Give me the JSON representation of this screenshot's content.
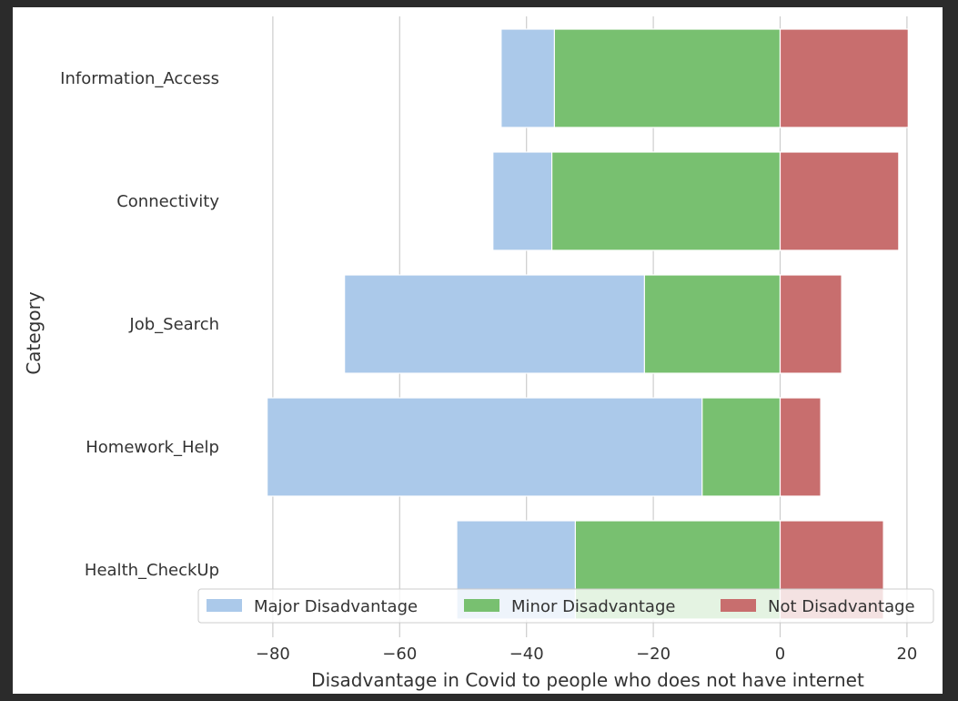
{
  "chart_data": {
    "type": "bar",
    "orientation": "horizontal",
    "stacked": true,
    "categories": [
      "Information_Access",
      "Connectivity",
      "Job_Search",
      "Homework_Help",
      "Health_CheckUp"
    ],
    "series": [
      {
        "name": "Major Disadvantage",
        "color": "#abc9ea",
        "values": [
          -44,
          -45.3,
          -68.7,
          -80.9,
          -51
        ]
      },
      {
        "name": "Minor Disadvantage",
        "color": "#78c070",
        "values": [
          -35.6,
          -36,
          -21.4,
          -12.3,
          -32.3
        ]
      },
      {
        "name": "Not Disadvantage",
        "color": "#c86e6e",
        "values": [
          20.2,
          18.7,
          9.7,
          6.4,
          16.3
        ]
      }
    ],
    "xlabel": "Disadvantage in Covid to people who does not have internet",
    "ylabel": "Category",
    "xlim": [
      -90.8,
      23
    ],
    "xticks": [
      -80,
      -60,
      -40,
      -20,
      0,
      20
    ],
    "xtick_labels": [
      "−80",
      "−60",
      "−40",
      "−20",
      "0",
      "20"
    ],
    "grid": "x",
    "legend_placement": "bottom",
    "legend_columns": 3
  }
}
